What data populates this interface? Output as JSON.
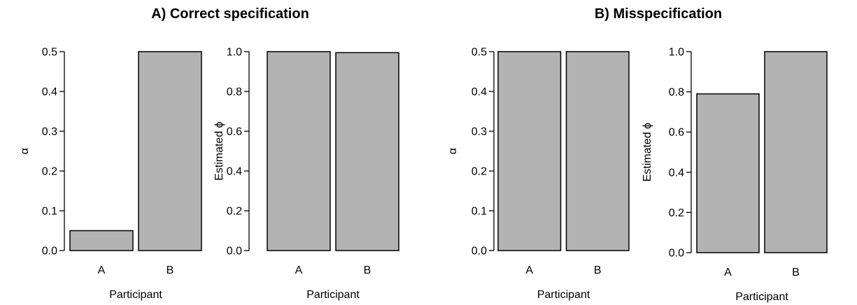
{
  "titles": {
    "a": "A) Correct specification",
    "b": "B) Misspecification"
  },
  "chart_data": [
    {
      "type": "bar",
      "panel": "a",
      "categories": [
        "A",
        "B"
      ],
      "values": [
        0.05,
        0.5
      ],
      "xlabel": "Participant",
      "ylabel": "α",
      "ylim": [
        0,
        0.5
      ],
      "yticks": [
        "0.0",
        "0.1",
        "0.2",
        "0.3",
        "0.4",
        "0.5"
      ],
      "bar_color": "#b3b3b3"
    },
    {
      "type": "bar",
      "panel": "a",
      "categories": [
        "A",
        "B"
      ],
      "values": [
        1.0,
        0.995
      ],
      "xlabel": "Participant",
      "ylabel": "Estimated ϕ",
      "ylim": [
        0,
        1.0
      ],
      "yticks": [
        "0.0",
        "0.2",
        "0.4",
        "0.6",
        "0.8",
        "1.0"
      ],
      "bar_color": "#b3b3b3"
    },
    {
      "type": "bar",
      "panel": "b",
      "categories": [
        "A",
        "B"
      ],
      "values": [
        0.5,
        0.5
      ],
      "xlabel": "Participant",
      "ylabel": "α",
      "ylim": [
        0,
        0.5
      ],
      "yticks": [
        "0.0",
        "0.1",
        "0.2",
        "0.3",
        "0.4",
        "0.5"
      ],
      "bar_color": "#b3b3b3"
    },
    {
      "type": "bar",
      "panel": "b",
      "categories": [
        "A",
        "B"
      ],
      "values": [
        0.79,
        1.0
      ],
      "xlabel": "Participant",
      "ylabel": "Estimated ϕ",
      "ylim": [
        0,
        1.0
      ],
      "yticks": [
        "0.0",
        "0.2",
        "0.4",
        "0.6",
        "0.8",
        "1.0"
      ],
      "bar_color": "#b3b3b3"
    }
  ]
}
